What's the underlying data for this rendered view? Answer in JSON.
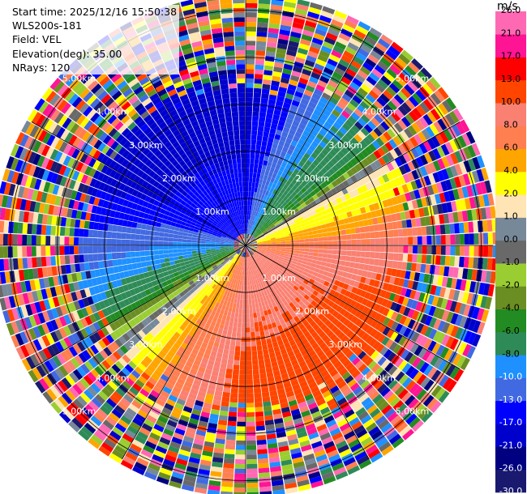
{
  "info": {
    "start_time": "Start time: 2025/12/16 15:50:38",
    "site": "WLS200s-181",
    "field": "Field: VEL",
    "elevation": "Elevation(deg): 35.00",
    "nrays": "NRays: 120"
  },
  "colorbar": {
    "units": "m/s",
    "colors": [
      "#191970",
      "#000080",
      "#0000cd",
      "#0000ff",
      "#4169e1",
      "#1e90ff",
      "#2e8b57",
      "#228b22",
      "#6b8e23",
      "#9acd32",
      "#696969",
      "#778899",
      "#ffe4b5",
      "#ffff00",
      "#ffa500",
      "#ff7f50",
      "#fa8072",
      "#ff4500",
      "#ff0000",
      "#ff1493",
      "#ff69b4"
    ],
    "tick_labels": [
      "-30.0",
      "-26.0",
      "-21.0",
      "-17.0",
      "-13.0",
      "-10.0",
      "-8.0",
      "-6.0",
      "-4.0",
      "-2.0",
      "-1.0",
      "0.0",
      "1.0",
      "2.0",
      "4.0",
      "6.0",
      "8.0",
      "10.0",
      "13.0",
      "17.0",
      "21.0",
      "26.0"
    ]
  },
  "chart_data": {
    "type": "heatmap",
    "projection": "polar PPI",
    "field": "VEL",
    "units": "m/s",
    "vmin": -30.0,
    "vmax": 30.0,
    "nrays": 120,
    "elevation_deg": 35.0,
    "range_rings_km": [
      1.0,
      2.0,
      3.0,
      4.0,
      5.0
    ],
    "ring_label_text": [
      "1.00km",
      "2.00km",
      "3.00km",
      "4.00km",
      "5.00km"
    ],
    "spokes_deg": [
      0,
      30,
      60,
      90,
      120,
      150,
      180,
      210,
      240,
      270,
      300,
      330
    ],
    "clean_range_km": [
      0.2,
      3.2
    ],
    "radial_velocity_by_azimuth": [
      {
        "azimuth_deg": 0,
        "velocity": -17.0
      },
      {
        "azimuth_deg": 30,
        "velocity": -8.0
      },
      {
        "azimuth_deg": 50,
        "velocity": -6.0
      },
      {
        "azimuth_deg": 60,
        "velocity": 1.0
      },
      {
        "azimuth_deg": 75,
        "velocity": 4.0
      },
      {
        "azimuth_deg": 90,
        "velocity": 8.0
      },
      {
        "azimuth_deg": 120,
        "velocity": 10.0
      },
      {
        "azimuth_deg": 150,
        "velocity": 10.0
      },
      {
        "azimuth_deg": 180,
        "velocity": 10.0
      },
      {
        "azimuth_deg": 210,
        "velocity": 6.0
      },
      {
        "azimuth_deg": 225,
        "velocity": 2.0
      },
      {
        "azimuth_deg": 235,
        "velocity": -1.0
      },
      {
        "azimuth_deg": 245,
        "velocity": -6.0
      },
      {
        "azimuth_deg": 270,
        "velocity": -10.0
      },
      {
        "azimuth_deg": 300,
        "velocity": -17.0
      },
      {
        "azimuth_deg": 360,
        "velocity": -17.0
      }
    ]
  }
}
